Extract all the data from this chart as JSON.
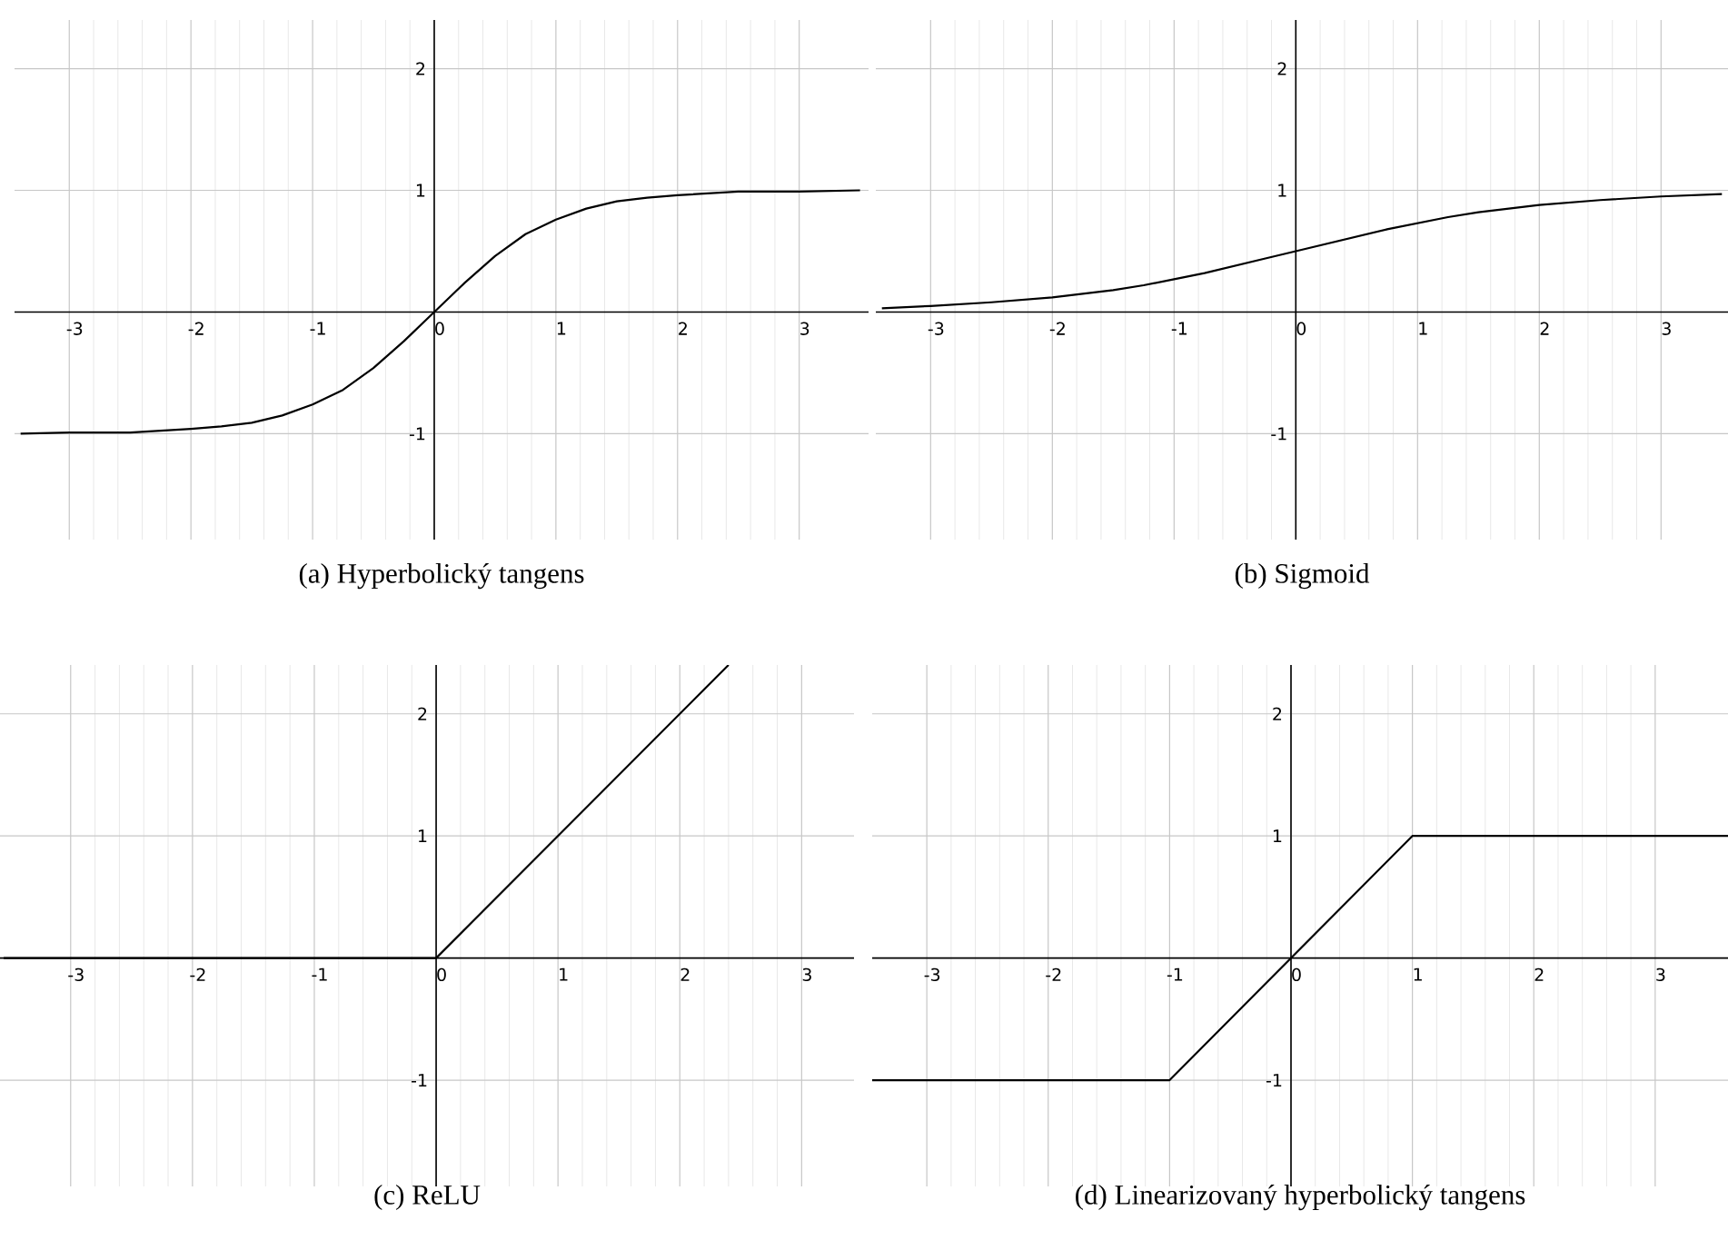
{
  "chart_data": [
    {
      "type": "line",
      "title": "(a) Hyperbolický tangens",
      "color": "#000000",
      "grid": true,
      "x": [
        -3.4,
        -3,
        -2.5,
        -2,
        -1.75,
        -1.5,
        -1.25,
        -1,
        -0.75,
        -0.5,
        -0.25,
        0,
        0.25,
        0.5,
        0.75,
        1,
        1.25,
        1.5,
        1.75,
        2,
        2.5,
        3,
        3.5
      ],
      "values": [
        -1.0,
        -0.99,
        -0.99,
        -0.96,
        -0.94,
        -0.91,
        -0.85,
        -0.76,
        -0.64,
        -0.46,
        -0.24,
        0,
        0.24,
        0.46,
        0.64,
        0.76,
        0.85,
        0.91,
        0.94,
        0.96,
        0.99,
        0.99,
        1.0
      ],
      "xlim": [
        -3.45,
        3.57
      ],
      "ylim": [
        -1.87,
        2.4
      ],
      "xticks": [
        -3,
        -2,
        -1,
        0,
        1,
        2,
        3
      ],
      "yticks": [
        -1,
        1,
        2
      ]
    },
    {
      "type": "line",
      "title": "(b) Sigmoid",
      "color": "#000000",
      "grid": true,
      "x": [
        -3.4,
        -3,
        -2.5,
        -2,
        -1.75,
        -1.5,
        -1.25,
        -1,
        -0.75,
        -0.5,
        -0.25,
        0,
        0.25,
        0.5,
        0.75,
        1,
        1.25,
        1.5,
        1.75,
        2,
        2.5,
        3,
        3.5
      ],
      "values": [
        0.03,
        0.05,
        0.08,
        0.12,
        0.15,
        0.18,
        0.22,
        0.27,
        0.32,
        0.38,
        0.44,
        0.5,
        0.56,
        0.62,
        0.68,
        0.73,
        0.78,
        0.82,
        0.85,
        0.88,
        0.92,
        0.95,
        0.97
      ],
      "xlim": [
        -3.45,
        3.55
      ],
      "ylim": [
        -1.87,
        2.4
      ],
      "xticks": [
        -3,
        -2,
        -1,
        0,
        1,
        2,
        3
      ],
      "yticks": [
        -1,
        1,
        2
      ]
    },
    {
      "type": "line",
      "title": "(c) ReLU",
      "color": "#000000",
      "grid": true,
      "x": [
        -3.55,
        0,
        2.4
      ],
      "values": [
        0,
        0,
        2.4
      ],
      "xlim": [
        -3.58,
        3.43
      ],
      "ylim": [
        -1.87,
        2.4
      ],
      "xticks": [
        -3,
        -2,
        -1,
        0,
        1,
        2,
        3
      ],
      "yticks": [
        -1,
        1,
        2
      ]
    },
    {
      "type": "line",
      "title": "(d) Linearizovaný hyperbolický tangens",
      "color": "#000000",
      "grid": true,
      "x": [
        -3.45,
        -1,
        1,
        3.6
      ],
      "values": [
        -1,
        -1,
        1,
        1
      ],
      "xlim": [
        -3.45,
        3.6
      ],
      "ylim": [
        -1.87,
        2.4
      ],
      "xticks": [
        -3,
        -2,
        -1,
        0,
        1,
        2,
        3
      ],
      "yticks": [
        -1,
        1,
        2
      ]
    }
  ]
}
